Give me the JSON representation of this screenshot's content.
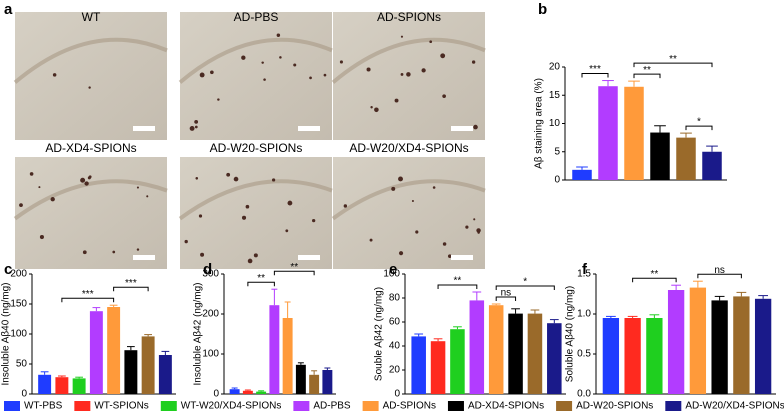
{
  "image_panel": {
    "letter": "a",
    "labels": [
      "WT",
      "AD-PBS",
      "AD-SPIONs",
      "AD-XD4-SPIONs",
      "AD-W20-SPIONs",
      "AD-W20/XD4-SPIONs"
    ]
  },
  "legend": {
    "names": [
      "WT-PBS",
      "WT-SPIONs",
      "WT-W20/XD4-SPIONs",
      "AD-PBS",
      "AD-SPIONs",
      "AD-XD4-SPIONs",
      "AD-W20-SPIONs",
      "AD-W20/XD4-SPIONs"
    ],
    "colors": [
      "#1f3cff",
      "#ff2a1f",
      "#1fcf1f",
      "#b23cff",
      "#ff9a3a",
      "#000000",
      "#9a6a2a",
      "#1a1a8a"
    ]
  },
  "chart_data": [
    {
      "type": "bar",
      "letter": "b",
      "ylabel": "Aβ staining area (%)",
      "ylim": [
        0,
        20
      ],
      "yticks": [
        0,
        5,
        10,
        15,
        20
      ],
      "colors": [
        "#1f3cff",
        "#b23cff",
        "#ff9a3a",
        "#000000",
        "#9a6a2a",
        "#1a1a8a"
      ],
      "values": [
        1.8,
        16.6,
        16.5,
        8.4,
        7.5,
        5.0
      ],
      "errors": [
        0.5,
        1.0,
        1.0,
        1.2,
        0.8,
        1.0
      ],
      "annotations": [
        {
          "text": "***",
          "bars": [
            0,
            1
          ]
        },
        {
          "text": "**",
          "bars": [
            2,
            3
          ]
        },
        {
          "text": "*",
          "bars": [
            4,
            5
          ]
        },
        {
          "text": "**",
          "bars": [
            2,
            5
          ]
        }
      ]
    },
    {
      "type": "bar",
      "letter": "c",
      "ylabel": "Insoluble Aβ40 (ng/mg)",
      "ylim": [
        0,
        200
      ],
      "yticks": [
        0,
        50,
        100,
        150,
        200
      ],
      "colors": [
        "#1f3cff",
        "#ff2a1f",
        "#1fcf1f",
        "#b23cff",
        "#ff9a3a",
        "#000000",
        "#9a6a2a",
        "#1a1a8a"
      ],
      "values": [
        32,
        28,
        26,
        138,
        145,
        73,
        96,
        65
      ],
      "errors": [
        5,
        2,
        2,
        6,
        3,
        6,
        3,
        6
      ],
      "annotations": [
        {
          "text": "***",
          "bars": [
            1,
            4
          ]
        },
        {
          "text": "***",
          "bars": [
            4,
            6
          ]
        }
      ]
    },
    {
      "type": "bar",
      "letter": "d",
      "ylabel": "Insoluble Aβ42 (ng/mg)",
      "ylim": [
        0,
        300
      ],
      "yticks": [
        0,
        100,
        200,
        300
      ],
      "colors": [
        "#1f3cff",
        "#ff2a1f",
        "#1fcf1f",
        "#b23cff",
        "#ff9a3a",
        "#000000",
        "#9a6a2a",
        "#1a1a8a"
      ],
      "values": [
        12,
        8,
        6,
        222,
        190,
        73,
        48,
        60
      ],
      "errors": [
        3,
        2,
        2,
        40,
        40,
        5,
        10,
        5
      ],
      "annotations": [
        {
          "text": "**",
          "bars": [
            1,
            3
          ]
        },
        {
          "text": "**",
          "bars": [
            3,
            6
          ]
        }
      ]
    },
    {
      "type": "bar",
      "letter": "e",
      "ylabel": "Souble Aβ42 (ng/mg)",
      "ylim": [
        0,
        100
      ],
      "yticks": [
        0,
        20,
        40,
        60,
        80,
        100
      ],
      "colors": [
        "#1f3cff",
        "#ff2a1f",
        "#1fcf1f",
        "#b23cff",
        "#ff9a3a",
        "#000000",
        "#9a6a2a",
        "#1a1a8a"
      ],
      "values": [
        48,
        44,
        54,
        78,
        74,
        67,
        67,
        59
      ],
      "errors": [
        2,
        2,
        2,
        7,
        1,
        4,
        3,
        3
      ],
      "annotations": [
        {
          "text": "**",
          "bars": [
            1,
            3
          ]
        },
        {
          "text": "ns",
          "bars": [
            4,
            5
          ]
        },
        {
          "text": "*",
          "bars": [
            4,
            7
          ]
        }
      ]
    },
    {
      "type": "bar",
      "letter": "f",
      "ylabel": "Soluble Aβ40 (ng/mg)",
      "ylim": [
        0,
        1.5
      ],
      "yticks": [
        {
          "value": 0,
          "label": "0.0"
        },
        0.5,
        {
          "value": 1,
          "label": "1.0"
        },
        1.5
      ],
      "colors": [
        "#1f3cff",
        "#ff2a1f",
        "#1fcf1f",
        "#b23cff",
        "#ff9a3a",
        "#000000",
        "#9a6a2a",
        "#1a1a8a"
      ],
      "values": [
        0.95,
        0.95,
        0.95,
        1.3,
        1.33,
        1.17,
        1.22,
        1.19
      ],
      "errors": [
        0.02,
        0.02,
        0.04,
        0.06,
        0.08,
        0.05,
        0.05,
        0.04
      ],
      "annotations": [
        {
          "text": "**",
          "bars": [
            1,
            3
          ]
        },
        {
          "text": "ns",
          "bars": [
            4,
            6
          ]
        }
      ]
    }
  ]
}
